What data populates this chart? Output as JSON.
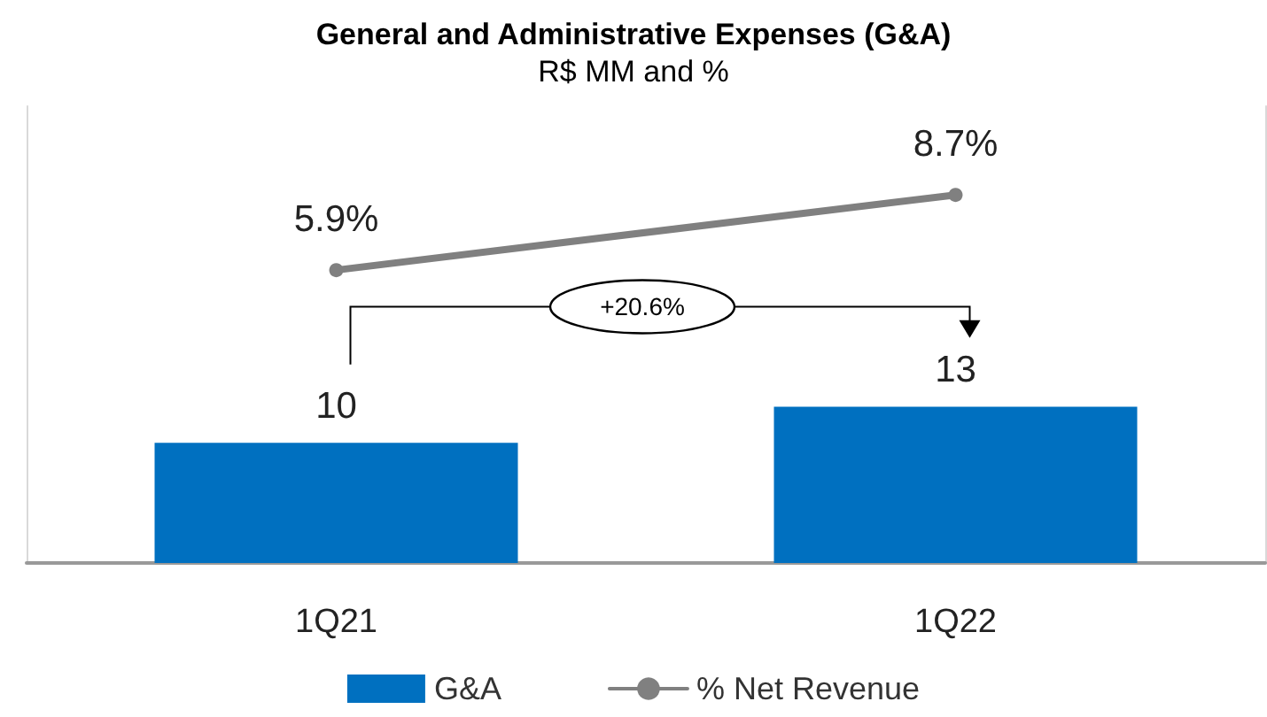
{
  "chart_data": {
    "type": "bar",
    "title": "General and Administrative Expenses (G&A)",
    "subtitle": "R$ MM and %",
    "categories": [
      "1Q21",
      "1Q22"
    ],
    "series": [
      {
        "name": "G&A",
        "color": "#0070c0",
        "values": [
          10,
          13
        ]
      },
      {
        "name": "% Net Revenue",
        "type": "line",
        "axis": "y2",
        "color": "#808080",
        "values": [
          5.9,
          8.7
        ],
        "value_labels": [
          "5.9%",
          "8.7%"
        ]
      }
    ],
    "ylim": [
      0,
      38
    ],
    "y2lim": [
      -5,
      12
    ],
    "tick_labels": "x",
    "data_labels": true,
    "marker": "circle",
    "line_style": "solid",
    "legend": "bottom",
    "annotations": [
      "+20.6%"
    ]
  }
}
